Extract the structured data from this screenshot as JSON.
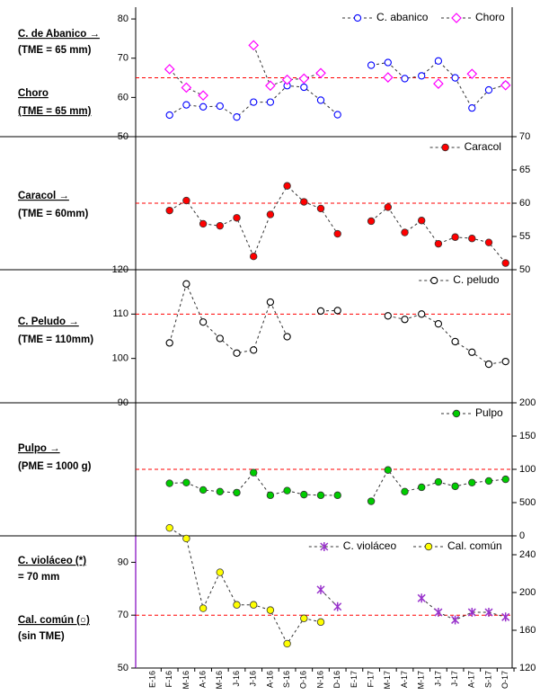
{
  "chart_data": [
    {
      "type": "line",
      "ylim": [
        50,
        83
      ],
      "yticks": [
        50,
        60,
        70,
        80
      ],
      "y_axis_side": "left",
      "threshold": 65,
      "threshold_color": "#ff0000",
      "side_labels": [
        {
          "text": "C. de Abanico →",
          "underline": true
        },
        {
          "text": "(TME = 65 mm)",
          "underline": false
        },
        {
          "text": "Choro",
          "underline": true
        },
        {
          "text": "(TME = 65 mm)",
          "underline": true
        }
      ],
      "series": [
        {
          "name": "C. abanico",
          "color": "#0000ff",
          "marker": "circle-open",
          "values": [
            null,
            55.5,
            58.1,
            57.6,
            57.8,
            55.0,
            58.8,
            58.8,
            63.0,
            62.6,
            59.3,
            55.6,
            null,
            68.2,
            68.9,
            64.8,
            65.5,
            69.3,
            65.0,
            57.3,
            61.9,
            63.2
          ]
        },
        {
          "name": "Choro",
          "color": "#ff00ff",
          "marker": "diamond-open",
          "values": [
            null,
            67.2,
            62.5,
            60.5,
            null,
            null,
            73.3,
            63.0,
            64.5,
            64.8,
            66.2,
            null,
            null,
            null,
            65.1,
            null,
            null,
            63.5,
            null,
            66.0,
            null,
            63.1
          ]
        }
      ]
    },
    {
      "type": "line",
      "ylim": [
        50,
        70
      ],
      "yticks": [
        50,
        55,
        60,
        65,
        70
      ],
      "y_axis_side": "right",
      "threshold": 60,
      "threshold_color": "#ff0000",
      "side_labels": [
        {
          "text": "Caracol  →",
          "underline": true
        },
        {
          "text": "(TME = 60mm)",
          "underline": false
        }
      ],
      "series": [
        {
          "name": "Caracol",
          "color": "#ff0000",
          "marker": "circle",
          "values": [
            null,
            58.9,
            60.4,
            56.9,
            56.6,
            57.8,
            52.0,
            58.3,
            62.6,
            60.2,
            59.2,
            55.4,
            null,
            57.3,
            59.4,
            55.6,
            57.4,
            53.9,
            54.9,
            54.7,
            54.1,
            51.0
          ]
        }
      ]
    },
    {
      "type": "line",
      "ylim": [
        90,
        120
      ],
      "yticks": [
        90,
        100,
        110,
        120
      ],
      "y_axis_side": "left",
      "threshold": 110,
      "threshold_color": "#ff0000",
      "side_labels": [
        {
          "text": "C. Peludo →",
          "underline": true
        },
        {
          "text": "(TME = 110mm)",
          "underline": false
        }
      ],
      "series": [
        {
          "name": "C. peludo",
          "color": "#ffffff",
          "marker": "circle-open",
          "values": [
            null,
            103.5,
            116.8,
            108.2,
            104.5,
            101.2,
            101.9,
            112.7,
            104.9,
            null,
            110.7,
            110.8,
            null,
            null,
            109.6,
            108.8,
            110.0,
            107.8,
            103.8,
            101.4,
            98.7,
            99.3
          ]
        }
      ]
    },
    {
      "type": "line",
      "ylim": [
        0,
        2000
      ],
      "yticks": [
        0,
        500,
        {
          "value": 1000,
          "label": "100"
        },
        {
          "value": 1500,
          "label": "150"
        },
        {
          "value": 2000,
          "label": "200"
        }
      ],
      "y_axis_side": "right",
      "threshold": 1000,
      "threshold_color": "#ff0000",
      "side_labels": [
        {
          "text": "Pulpo    →",
          "underline": true
        },
        {
          "text": "(PME = 1000 g)",
          "underline": false
        }
      ],
      "series": [
        {
          "name": "Pulpo",
          "color": "#00cc00",
          "marker": "circle",
          "values": [
            null,
            790,
            800,
            690,
            665,
            650,
            950,
            610,
            680,
            620,
            610,
            610,
            null,
            520,
            990,
            665,
            730,
            810,
            745,
            800,
            825,
            850
          ]
        }
      ]
    },
    {
      "type": "line",
      "ylim": [
        50,
        100
      ],
      "yticks": [
        50,
        70,
        90
      ],
      "y_axis_side": "left",
      "y2lim": [
        120,
        260
      ],
      "y2ticks": [
        120,
        160,
        200,
        240
      ],
      "threshold": 70,
      "threshold_color": "#ff0000",
      "side_labels": [
        {
          "text": "C. violáceo (*)",
          "underline": true
        },
        {
          "text": " = 70 mm",
          "underline": false
        },
        {
          "text": "Cal. común (○)",
          "underline": true
        },
        {
          "text": "(sin TME)",
          "underline": false
        }
      ],
      "categories": [
        "E-16",
        "F-16",
        "M-16",
        "A-16",
        "M-16",
        "J-16",
        "J-16",
        "A-16",
        "S-16",
        "O-16",
        "N-16",
        "D-16",
        "E-17",
        "F-17",
        "M-17",
        "A-17",
        "M-17",
        "J-17",
        "J-17",
        "A-17",
        "S-17",
        "O-17"
      ],
      "series": [
        {
          "name": "C. violáceo",
          "color": "#9933cc",
          "marker": "star",
          "axis": "y2",
          "values": [
            null,
            null,
            null,
            null,
            null,
            null,
            null,
            null,
            null,
            null,
            203,
            185,
            null,
            null,
            null,
            null,
            194,
            179,
            171,
            179,
            179,
            174
          ]
        },
        {
          "name": "Cal. común",
          "color": "#ffff00",
          "marker": "circle",
          "values": [
            null,
            103,
            99,
            72.6,
            86.2,
            73.9,
            73.9,
            71.9,
            59.2,
            68.8,
            67.4,
            null,
            null,
            null,
            null,
            null,
            null,
            null,
            null,
            null,
            null,
            null
          ]
        }
      ]
    }
  ]
}
